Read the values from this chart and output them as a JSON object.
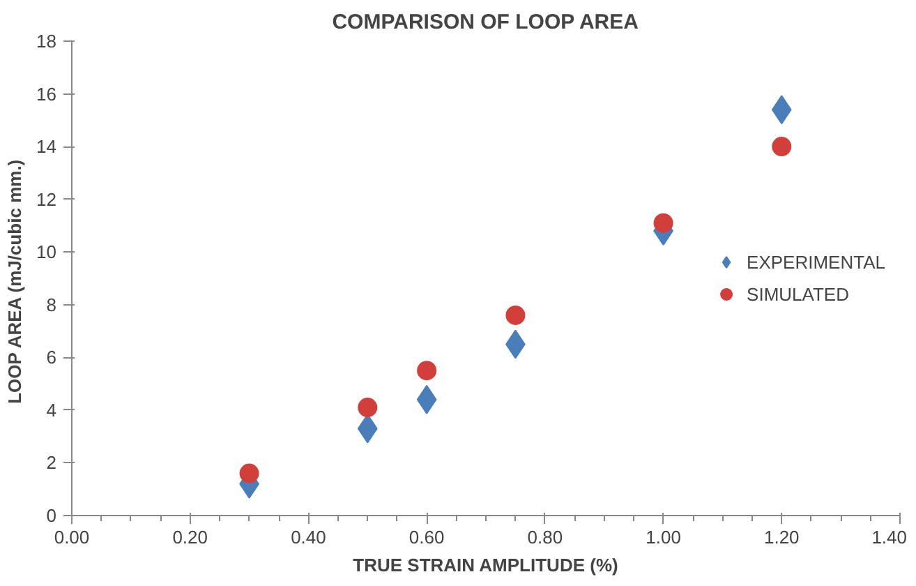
{
  "chart_data": {
    "type": "scatter",
    "title": "COMPARISON OF LOOP AREA",
    "xlabel": "TRUE STRAIN AMPLITUDE (%)",
    "ylabel": "LOOP AREA  (mJ/cubic mm.)",
    "x": [
      0.3,
      0.5,
      0.6,
      0.75,
      1.0,
      1.2
    ],
    "series": [
      {
        "name": "EXPERIMENTAL",
        "color": "#4a7ebb",
        "marker": "diamond",
        "values": [
          1.2,
          3.3,
          4.4,
          6.5,
          10.8,
          15.4
        ]
      },
      {
        "name": "SIMULATED",
        "color": "#d23f3a",
        "marker": "circle",
        "values": [
          1.6,
          4.1,
          5.5,
          7.6,
          11.1,
          14.0
        ]
      }
    ],
    "xlim": [
      0,
      1.4
    ],
    "ylim": [
      0,
      18
    ],
    "xticks": [
      {
        "value": 0,
        "label": "0.00"
      },
      {
        "value": 0.2,
        "label": "0.20"
      },
      {
        "value": 0.4,
        "label": "0.40"
      },
      {
        "value": 0.6,
        "label": "0.60"
      },
      {
        "value": 0.8,
        "label": "0.80"
      },
      {
        "value": 1.0,
        "label": "1.00"
      },
      {
        "value": 1.2,
        "label": "1.20"
      },
      {
        "value": 1.4,
        "label": "1.40"
      }
    ],
    "yticks": [
      0,
      2,
      4,
      6,
      8,
      10,
      12,
      14,
      16,
      18
    ],
    "grid": false,
    "legend": "right"
  }
}
